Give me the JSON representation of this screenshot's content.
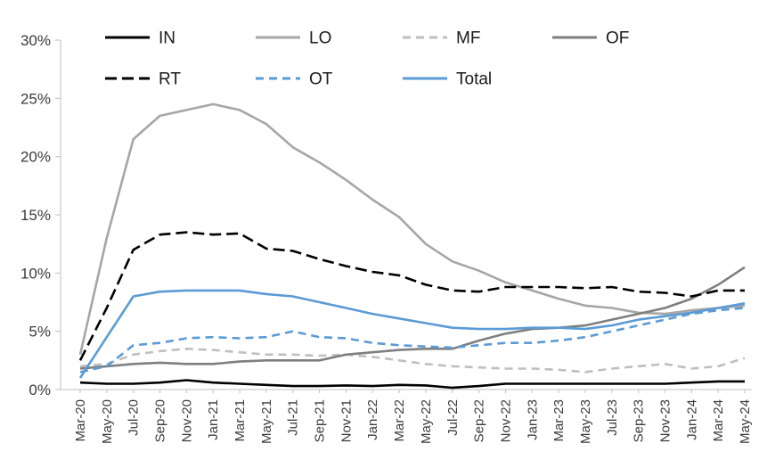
{
  "chart_data": {
    "type": "line",
    "title": "",
    "xlabel": "",
    "ylabel": "",
    "ylim": [
      0,
      30
    ],
    "y_tick_step": 5,
    "y_tick_labels": [
      "0%",
      "5%",
      "10%",
      "15%",
      "20%",
      "25%",
      "30%"
    ],
    "grid": false,
    "legend_position": "top",
    "legend_rows": [
      [
        "IN",
        "LO",
        "MF",
        "OF"
      ],
      [
        "RT",
        "OT",
        "Total"
      ]
    ],
    "categories": [
      "Mar-20",
      "May-20",
      "Jul-20",
      "Sep-20",
      "Nov-20",
      "Jan-21",
      "Mar-21",
      "May-21",
      "Jul-21",
      "Sep-21",
      "Nov-21",
      "Jan-22",
      "Mar-22",
      "May-22",
      "Jul-22",
      "Sep-22",
      "Nov-22",
      "Jan-23",
      "Mar-23",
      "May-23",
      "Jul-23",
      "Sep-23",
      "Nov-23",
      "Jan-24",
      "Mar-24",
      "May-24"
    ],
    "series": [
      {
        "name": "IN",
        "color": "#000000",
        "dash": null,
        "values": [
          0.6,
          0.5,
          0.5,
          0.6,
          0.8,
          0.6,
          0.5,
          0.4,
          0.3,
          0.3,
          0.35,
          0.3,
          0.4,
          0.35,
          0.15,
          0.3,
          0.5,
          0.5,
          0.5,
          0.5,
          0.5,
          0.5,
          0.5,
          0.6,
          0.7,
          0.7
        ]
      },
      {
        "name": "LO",
        "color": "#a6a6a6",
        "dash": null,
        "values": [
          3.0,
          13.0,
          21.5,
          23.5,
          24.0,
          24.5,
          24.0,
          22.8,
          20.8,
          19.5,
          18.0,
          16.3,
          14.8,
          12.5,
          11.0,
          10.2,
          9.2,
          8.5,
          7.8,
          7.2,
          7.0,
          6.6,
          6.5,
          6.8,
          7.0,
          7.2
        ]
      },
      {
        "name": "MF",
        "color": "#bfbfbf",
        "dash": "9 6",
        "values": [
          2.0,
          2.2,
          3.0,
          3.3,
          3.5,
          3.4,
          3.2,
          3.0,
          3.0,
          2.9,
          3.0,
          2.8,
          2.5,
          2.2,
          2.0,
          1.9,
          1.8,
          1.8,
          1.7,
          1.5,
          1.8,
          2.0,
          2.2,
          1.8,
          2.0,
          2.7
        ]
      },
      {
        "name": "OF",
        "color": "#7f7f7f",
        "dash": null,
        "values": [
          1.8,
          2.0,
          2.2,
          2.3,
          2.2,
          2.2,
          2.4,
          2.5,
          2.5,
          2.5,
          3.0,
          3.2,
          3.4,
          3.5,
          3.5,
          4.2,
          4.8,
          5.2,
          5.3,
          5.5,
          6.0,
          6.5,
          7.0,
          7.8,
          9.0,
          10.5
        ]
      },
      {
        "name": "RT",
        "color": "#000000",
        "dash": "13 6",
        "values": [
          2.5,
          7.0,
          12.0,
          13.3,
          13.5,
          13.3,
          13.4,
          12.1,
          11.9,
          11.2,
          10.6,
          10.1,
          9.8,
          9.0,
          8.5,
          8.4,
          8.8,
          8.8,
          8.8,
          8.7,
          8.8,
          8.4,
          8.3,
          8.0,
          8.5,
          8.5
        ]
      },
      {
        "name": "OT",
        "color": "#5b9bd5",
        "dash": "9 6",
        "values": [
          1.5,
          2.0,
          3.8,
          4.0,
          4.4,
          4.5,
          4.4,
          4.5,
          5.0,
          4.5,
          4.4,
          4.0,
          3.8,
          3.7,
          3.6,
          3.8,
          4.0,
          4.0,
          4.2,
          4.5,
          5.0,
          5.5,
          6.0,
          6.5,
          6.8,
          7.0
        ]
      },
      {
        "name": "Total",
        "color": "#5b9bd5",
        "dash": null,
        "values": [
          1.0,
          4.5,
          8.0,
          8.4,
          8.5,
          8.5,
          8.5,
          8.2,
          8.0,
          7.5,
          7.0,
          6.5,
          6.1,
          5.7,
          5.3,
          5.2,
          5.2,
          5.3,
          5.3,
          5.2,
          5.5,
          6.0,
          6.3,
          6.6,
          7.0,
          7.4
        ]
      }
    ],
    "colors": {
      "axis": "#bfbfbf",
      "tick": "#bfbfbf",
      "axis_label": "#3b3b3b",
      "legend_label": "#1a1a1a",
      "accent_blue": "#5b9bd5"
    }
  }
}
